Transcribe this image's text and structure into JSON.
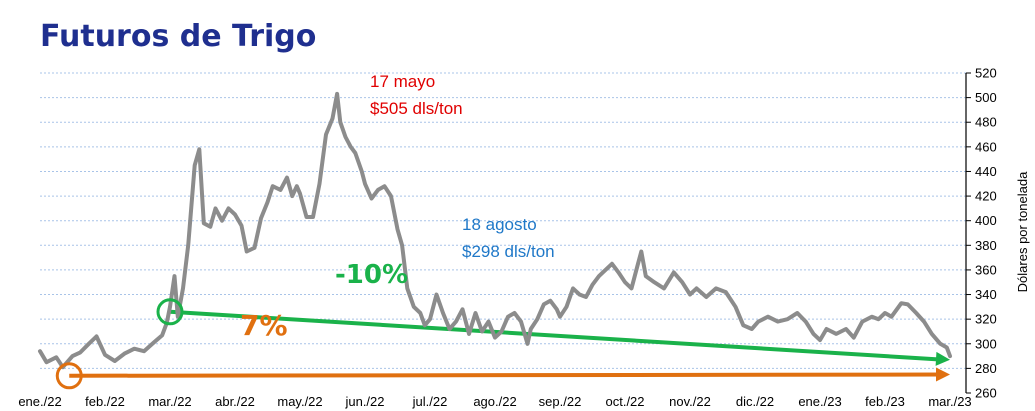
{
  "title": "Futuros de Trigo",
  "chart_data": {
    "type": "line",
    "title": "Futuros de Trigo",
    "ylabel": "Dólares por tonelada",
    "xlabel": "",
    "ylim": [
      260,
      520
    ],
    "yticks": [
      260,
      280,
      300,
      320,
      340,
      360,
      380,
      400,
      420,
      440,
      460,
      480,
      500,
      520
    ],
    "y_axis_side": "right",
    "grid": "horizontal dashed",
    "months": [
      "ene./22",
      "feb./22",
      "mar./22",
      "abr./22",
      "may./22",
      "jun./22",
      "jul./22",
      "ago./22",
      "sep./22",
      "oct./22",
      "nov./22",
      "dic./22",
      "ene./23",
      "feb./23",
      "mar./23"
    ],
    "series": [
      {
        "color": "#8c8c8c",
        "points": [
          [
            0.0,
            294
          ],
          [
            0.1,
            285
          ],
          [
            0.25,
            289
          ],
          [
            0.35,
            281
          ],
          [
            0.5,
            290
          ],
          [
            0.62,
            293
          ],
          [
            0.75,
            300
          ],
          [
            0.87,
            306
          ],
          [
            1.0,
            291
          ],
          [
            1.15,
            286
          ],
          [
            1.3,
            292
          ],
          [
            1.45,
            296
          ],
          [
            1.6,
            294
          ],
          [
            1.75,
            301
          ],
          [
            1.88,
            307
          ],
          [
            1.95,
            317
          ],
          [
            2.0,
            330
          ],
          [
            2.07,
            355
          ],
          [
            2.12,
            322
          ],
          [
            2.2,
            345
          ],
          [
            2.28,
            380
          ],
          [
            2.38,
            445
          ],
          [
            2.45,
            458
          ],
          [
            2.52,
            398
          ],
          [
            2.62,
            395
          ],
          [
            2.7,
            410
          ],
          [
            2.8,
            400
          ],
          [
            2.9,
            410
          ],
          [
            3.0,
            405
          ],
          [
            3.1,
            396
          ],
          [
            3.18,
            375
          ],
          [
            3.3,
            378
          ],
          [
            3.4,
            402
          ],
          [
            3.5,
            415
          ],
          [
            3.58,
            428
          ],
          [
            3.7,
            425
          ],
          [
            3.8,
            435
          ],
          [
            3.88,
            420
          ],
          [
            3.95,
            428
          ],
          [
            4.0,
            422
          ],
          [
            4.1,
            403
          ],
          [
            4.2,
            403
          ],
          [
            4.3,
            430
          ],
          [
            4.4,
            470
          ],
          [
            4.5,
            483
          ],
          [
            4.57,
            503
          ],
          [
            4.62,
            480
          ],
          [
            4.7,
            468
          ],
          [
            4.78,
            460
          ],
          [
            4.85,
            455
          ],
          [
            4.95,
            440
          ],
          [
            5.0,
            430
          ],
          [
            5.1,
            418
          ],
          [
            5.2,
            425
          ],
          [
            5.3,
            428
          ],
          [
            5.4,
            420
          ],
          [
            5.5,
            393
          ],
          [
            5.57,
            380
          ],
          [
            5.65,
            345
          ],
          [
            5.75,
            330
          ],
          [
            5.85,
            325
          ],
          [
            5.92,
            315
          ],
          [
            6.0,
            320
          ],
          [
            6.1,
            340
          ],
          [
            6.2,
            325
          ],
          [
            6.3,
            312
          ],
          [
            6.4,
            318
          ],
          [
            6.5,
            328
          ],
          [
            6.6,
            308
          ],
          [
            6.7,
            325
          ],
          [
            6.8,
            310
          ],
          [
            6.9,
            318
          ],
          [
            7.0,
            305
          ],
          [
            7.1,
            310
          ],
          [
            7.2,
            322
          ],
          [
            7.3,
            325
          ],
          [
            7.4,
            318
          ],
          [
            7.5,
            300
          ],
          [
            7.55,
            312
          ],
          [
            7.65,
            320
          ],
          [
            7.75,
            332
          ],
          [
            7.85,
            335
          ],
          [
            7.95,
            328
          ],
          [
            8.0,
            322
          ],
          [
            8.1,
            330
          ],
          [
            8.2,
            345
          ],
          [
            8.3,
            340
          ],
          [
            8.4,
            338
          ],
          [
            8.5,
            348
          ],
          [
            8.6,
            355
          ],
          [
            8.7,
            360
          ],
          [
            8.8,
            365
          ],
          [
            8.9,
            358
          ],
          [
            9.0,
            350
          ],
          [
            9.1,
            345
          ],
          [
            9.2,
            365
          ],
          [
            9.25,
            375
          ],
          [
            9.32,
            355
          ],
          [
            9.45,
            350
          ],
          [
            9.6,
            345
          ],
          [
            9.75,
            358
          ],
          [
            9.88,
            350
          ],
          [
            10.0,
            340
          ],
          [
            10.1,
            345
          ],
          [
            10.25,
            338
          ],
          [
            10.4,
            345
          ],
          [
            10.55,
            342
          ],
          [
            10.7,
            330
          ],
          [
            10.82,
            315
          ],
          [
            10.95,
            312
          ],
          [
            11.05,
            318
          ],
          [
            11.2,
            322
          ],
          [
            11.35,
            318
          ],
          [
            11.5,
            320
          ],
          [
            11.65,
            325
          ],
          [
            11.78,
            318
          ],
          [
            11.9,
            308
          ],
          [
            12.0,
            303
          ],
          [
            12.1,
            312
          ],
          [
            12.25,
            308
          ],
          [
            12.4,
            312
          ],
          [
            12.52,
            305
          ],
          [
            12.65,
            318
          ],
          [
            12.8,
            322
          ],
          [
            12.9,
            320
          ],
          [
            13.0,
            325
          ],
          [
            13.1,
            322
          ],
          [
            13.25,
            333
          ],
          [
            13.35,
            332
          ],
          [
            13.48,
            325
          ],
          [
            13.6,
            318
          ],
          [
            13.72,
            308
          ],
          [
            13.85,
            300
          ],
          [
            13.95,
            297
          ],
          [
            14.0,
            290
          ]
        ]
      }
    ],
    "trend_lines": [
      {
        "label": "-10%",
        "color": "#1ab24a",
        "from": [
          2.0,
          326
        ],
        "to": [
          14.0,
          287
        ]
      },
      {
        "label": "7%",
        "color": "#e07010",
        "from": [
          0.45,
          274
        ],
        "to": [
          14.0,
          275
        ]
      }
    ],
    "annotations": [
      {
        "lines": [
          "17 mayo",
          "$505 dls/ton"
        ],
        "color": "#e00000"
      },
      {
        "lines": [
          "18 agosto",
          "$298 dls/ton"
        ],
        "color": "#1f78c8"
      }
    ]
  }
}
